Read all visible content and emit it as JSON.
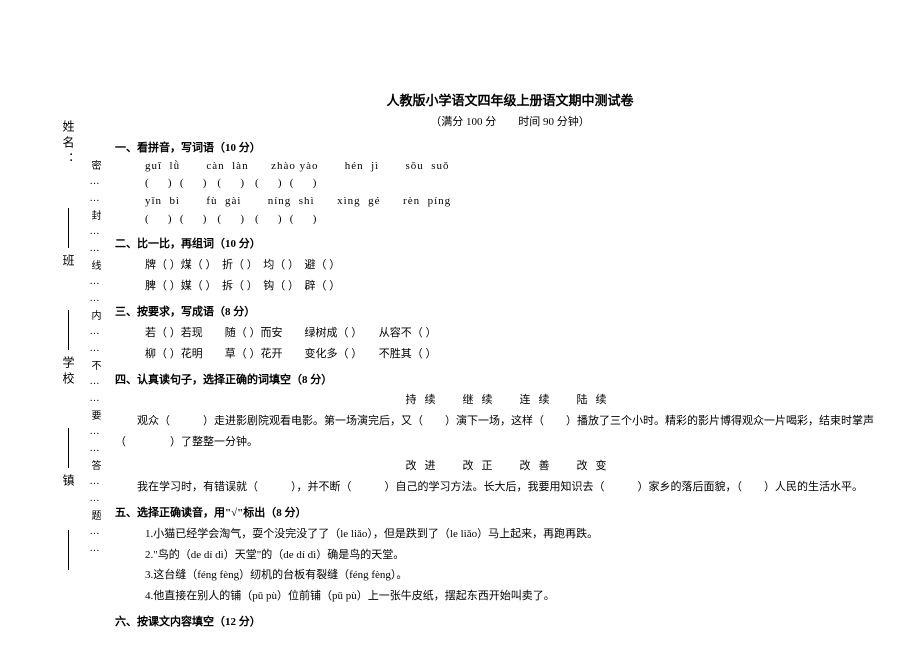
{
  "binding": {
    "warning": "密……封……线……内……不……要……答……题……",
    "labels": [
      "姓名：",
      "班",
      "学校",
      "镇"
    ]
  },
  "header": {
    "title": "人教版小学语文四年级上册语文期中测试卷",
    "subtitle": "（满分 100 分　　时间 90 分钟）"
  },
  "q1": {
    "head": "一、看拼音，写词语（10 分）",
    "pinyin1": "guī  lǜ       càn  làn      zhào yào       hén  jì       sōu  suǒ",
    "blanks1": "(       )   (       )    (       )    (       )   (       )",
    "pinyin2": "yǐn  bì       fù  gài       níng  shì      xìng  gé      rèn  píng",
    "blanks2": "(       )   (       )    (       )    (       )   (       )"
  },
  "q2": {
    "head": "二、比一比，再组词（10 分）",
    "row1": "牌（        ）煤（        ）　折（        ）　均（        ）　避（        ）",
    "row2": "脾（        ）媒（        ）　拆（        ）　钩（        ）　辟（        ）"
  },
  "q3": {
    "head": "三、按要求，写成语（8 分）",
    "row1": "若（    ）若现　　随（    ）而安　　绿树成（    ）　　从容不（    ）",
    "row2": "柳（    ）花明　　草（    ）花开　　变化多（    ）　　不胜其（    ）"
  },
  "q4": {
    "head": "四、认真读句子，选择正确的词填空（8 分）",
    "bank": "持续　继续　连续　陆续",
    "p1": "观众（　　　）走进影剧院观看电影。第一场演完后，又（　　）演下一场，这样（　　）播放了三个小时。精彩的影片博得观众一片喝彩，结束时掌声（　　　　）了整整一分钟。",
    "bank2": "改进　改正　改善　改变",
    "p2": "我在学习时，有错误就（　　　），并不断（　　　）自己的学习方法。长大后，我要用知识去（　　　）家乡的落后面貌，（　　）人民的生活水平。"
  },
  "q5": {
    "head": "五、选择正确读音，用\"√\"标出（8 分）",
    "i1": "1.小猫已经学会淘气，耍个没完没了了（le liǎo），但是跌到了（le liǎo）马上起来，再跑再跌。",
    "i2": "2.\"鸟的（de dí dì）天堂\"的（de dí dì）确是鸟的天堂。",
    "i3": "3.这台缝（féng fèng）纫机的台板有裂缝（féng fèng）。",
    "i4": "4.他直接在别人的铺（pū pù）位前铺（pū pù）上一张牛皮纸，摆起东西开始叫卖了。"
  },
  "q6": {
    "head": "六、按课文内容填空（12 分）"
  }
}
